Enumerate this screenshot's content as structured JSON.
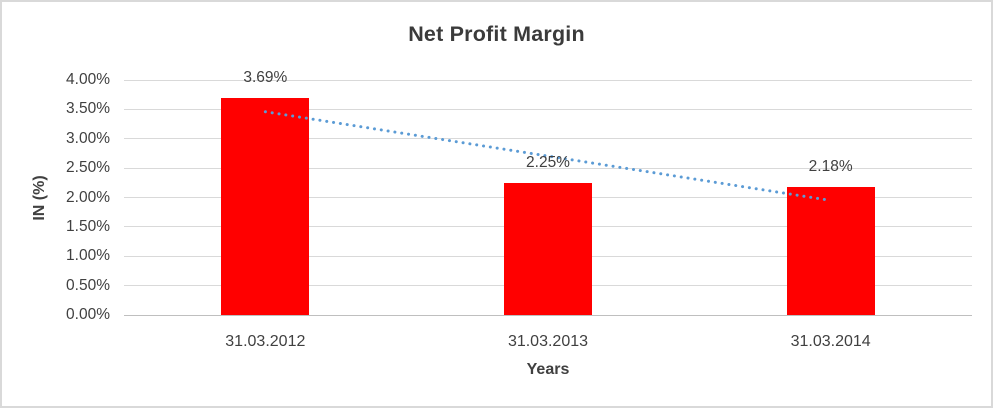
{
  "chart_data": {
    "type": "bar",
    "title": "Net Profit Margin",
    "xlabel": "Years",
    "ylabel": "IN (%)",
    "categories": [
      "31.03.2012",
      "31.03.2013",
      "31.03.2014"
    ],
    "series": [
      {
        "name": "Net Profit Margin",
        "values": [
          3.69,
          2.25,
          2.18
        ]
      }
    ],
    "data_labels": [
      "3.69%",
      "2.25%",
      "2.18%"
    ],
    "y_ticks": [
      "4.00%",
      "3.50%",
      "3.00%",
      "2.50%",
      "2.00%",
      "1.50%",
      "1.00%",
      "0.50%",
      "0.00%"
    ],
    "ylim": [
      0,
      4
    ],
    "grid": true,
    "legend": "none",
    "trendline": {
      "type": "linear",
      "style": "dotted",
      "start_value": 3.46,
      "end_value": 1.95
    },
    "colors": {
      "bar": "#FF0000",
      "trendline": "#5B9BD5",
      "gridline": "#D9D9D9",
      "axis_line": "#BFBFBF",
      "text": "#404040",
      "title_text": "#3B3B3B",
      "border": "#D9D9D9",
      "background": "#FFFFFF"
    }
  }
}
